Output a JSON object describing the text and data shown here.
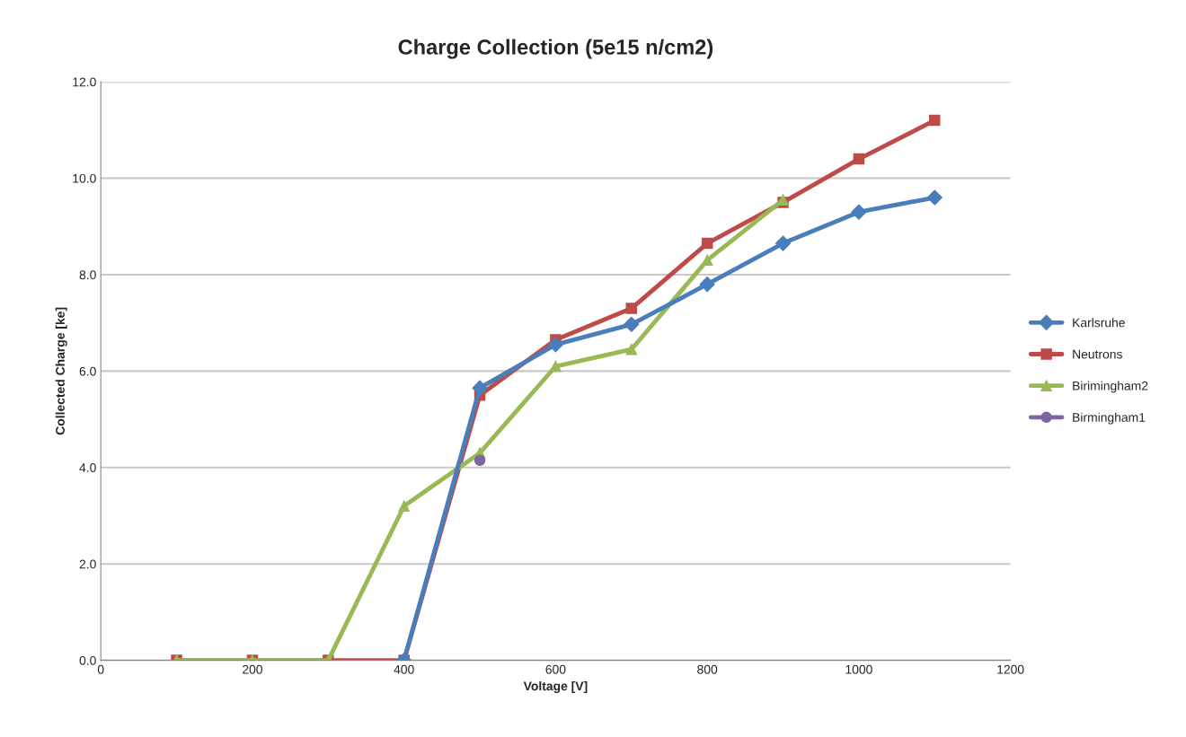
{
  "chart_data": {
    "type": "line",
    "title": "Charge Collection (5e15 n/cm2)",
    "xlabel": "Voltage [V]",
    "ylabel": "Collected Charge [ke]",
    "series": [
      {
        "name": "Karlsruhe",
        "color": "#4a7ebb",
        "marker": "diamond",
        "x": [
          400,
          500,
          600,
          700,
          800,
          900,
          1000,
          1100
        ],
        "values": [
          0,
          5.65,
          6.55,
          6.97,
          7.8,
          8.65,
          9.3,
          9.6
        ]
      },
      {
        "name": "Neutrons",
        "color": "#be4b48",
        "marker": "square",
        "x": [
          100,
          200,
          300,
          400,
          500,
          600,
          700,
          800,
          900,
          1000,
          1100
        ],
        "values": [
          0,
          0,
          0,
          0,
          5.5,
          6.65,
          7.3,
          8.65,
          9.5,
          10.4,
          11.2
        ]
      },
      {
        "name": "Birimingham2",
        "color": "#98b954",
        "marker": "triangle",
        "x": [
          100,
          200,
          300,
          400,
          500,
          600,
          700,
          800,
          900
        ],
        "values": [
          0,
          0,
          0,
          3.2,
          4.3,
          6.1,
          6.45,
          8.3,
          9.55
        ]
      },
      {
        "name": "Birmingham1",
        "color": "#8064a2",
        "marker": "circle",
        "x": [
          500
        ],
        "values": [
          4.15
        ]
      }
    ],
    "xlim": [
      0,
      1200
    ],
    "xticks": [
      0,
      200,
      400,
      600,
      800,
      1000,
      1200
    ],
    "ylim": [
      0,
      12
    ],
    "yticks": [
      {
        "value": 0,
        "label": "0.0"
      },
      {
        "value": 2,
        "label": "2.0"
      },
      {
        "value": 4,
        "label": "4.0"
      },
      {
        "value": 6,
        "label": "6.0"
      },
      {
        "value": 8,
        "label": "8.0"
      },
      {
        "value": 10,
        "label": "10.0"
      },
      {
        "value": 12,
        "label": "12.0"
      }
    ],
    "grid": "y",
    "legend": "right",
    "line_style": "solid"
  }
}
